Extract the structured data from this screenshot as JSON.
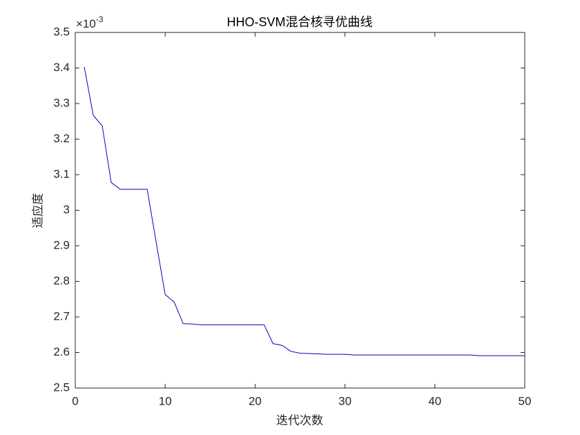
{
  "chart_data": {
    "type": "line",
    "title": "HHO-SVM混合核寻优曲线",
    "x_label": "迭代次数",
    "y_label": "适应度",
    "y_exponent_label": {
      "base": "×10",
      "exponent": "-3"
    },
    "x": [
      1,
      2,
      3,
      4,
      5,
      6,
      7,
      8,
      9,
      10,
      11,
      12,
      13,
      14,
      15,
      16,
      17,
      18,
      19,
      20,
      21,
      22,
      23,
      24,
      25,
      26,
      27,
      28,
      29,
      30,
      31,
      32,
      33,
      34,
      35,
      36,
      37,
      38,
      39,
      40,
      41,
      42,
      43,
      44,
      45,
      46,
      47,
      48,
      49,
      50
    ],
    "series": [
      {
        "color": "#0000c0",
        "values": [
          3.403,
          3.267,
          3.237,
          3.078,
          3.059,
          3.059,
          3.059,
          3.059,
          2.91,
          2.763,
          2.742,
          2.681,
          2.68,
          2.678,
          2.678,
          2.678,
          2.678,
          2.678,
          2.678,
          2.678,
          2.678,
          2.625,
          2.62,
          2.603,
          2.598,
          2.597,
          2.596,
          2.595,
          2.595,
          2.595,
          2.593,
          2.593,
          2.593,
          2.593,
          2.593,
          2.593,
          2.593,
          2.593,
          2.593,
          2.593,
          2.593,
          2.593,
          2.593,
          2.593,
          2.591,
          2.591,
          2.591,
          2.591,
          2.591,
          2.591
        ]
      }
    ],
    "xlim": [
      0,
      50
    ],
    "xticks": [
      0,
      10,
      20,
      30,
      40,
      50
    ],
    "ylim": [
      2.5,
      3.5
    ],
    "yticks": [
      2.5,
      2.6,
      2.7,
      2.8,
      2.9,
      3,
      3.1,
      3.2,
      3.3,
      3.4,
      3.5
    ],
    "grid": false
  }
}
